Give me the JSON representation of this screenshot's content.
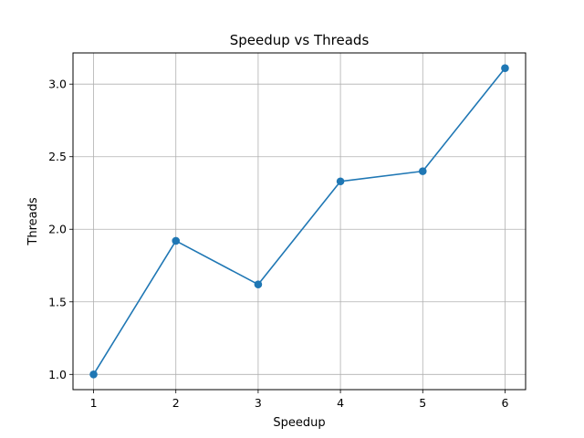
{
  "chart_data": {
    "type": "line",
    "title": "Speedup vs Threads",
    "xlabel": "Speedup",
    "ylabel": "Threads",
    "x": [
      1,
      2,
      3,
      4,
      5,
      6
    ],
    "series": [
      {
        "values": [
          1.0,
          1.92,
          1.62,
          2.33,
          2.4,
          3.11
        ],
        "color": "#1f77b4",
        "marker": "circle"
      }
    ],
    "xlim": [
      0.75,
      6.25
    ],
    "ylim": [
      0.895,
      3.215
    ],
    "xticks": [
      "1",
      "2",
      "3",
      "4",
      "5",
      "6"
    ],
    "yticks": [
      "1.0",
      "1.5",
      "2.0",
      "2.5",
      "3.0"
    ],
    "grid": true
  }
}
